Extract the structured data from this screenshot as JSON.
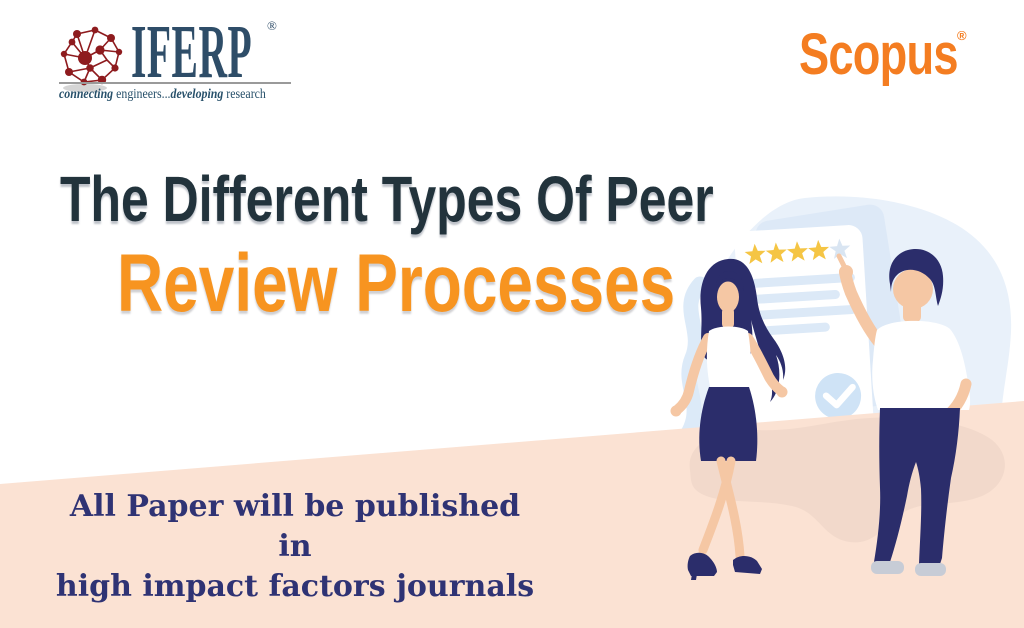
{
  "theme": {
    "title-dark": "#22333C",
    "title-orange": "#F79420",
    "scopus-orange": "#F47D21",
    "iferp-navy": "#2E4D68",
    "iferp-maroon": "#8E1B1E",
    "tagline-color": "#27506A",
    "subtext-navy": "#2F3374",
    "peach": "#FBE2D3"
  },
  "brand": {
    "iferp": {
      "logo_text": "IFERP",
      "registered_mark": "®",
      "icon": "network-globe-icon",
      "tagline": {
        "italic1": "connecting",
        "regular1": " engineers...",
        "italic2": "developing",
        "regular2": " research"
      }
    },
    "scopus": {
      "logo_text": "Scopus",
      "registered_mark": "®"
    }
  },
  "headline": {
    "line1": "The Different Types Of Peer",
    "line2": "Review Processes"
  },
  "subtext": {
    "line1": "All Paper will be published in",
    "line2": "high impact factors journals"
  },
  "illustration": {
    "description": "two-people-reviewing-rating-card",
    "rating": {
      "filled": 4,
      "total": 5
    },
    "colors": {
      "star_filled": "#F5C544",
      "star_empty": "#D9E5F2",
      "blob": "#E9F1FA",
      "swirl": "#DCEAF8",
      "card": "#FFFFFF",
      "card_back": "#DBE8F6",
      "placeholder_line": "#DCE9F7",
      "check_circle": "#CFE3F6",
      "check_mark": "#FFFFFF",
      "skin": "#F5C7A4",
      "navy": "#2B2D6B",
      "shoe_gray": "#C7CCD6",
      "peach": "#FBE2D3",
      "peach_shadow": "#F0D7C9"
    }
  }
}
